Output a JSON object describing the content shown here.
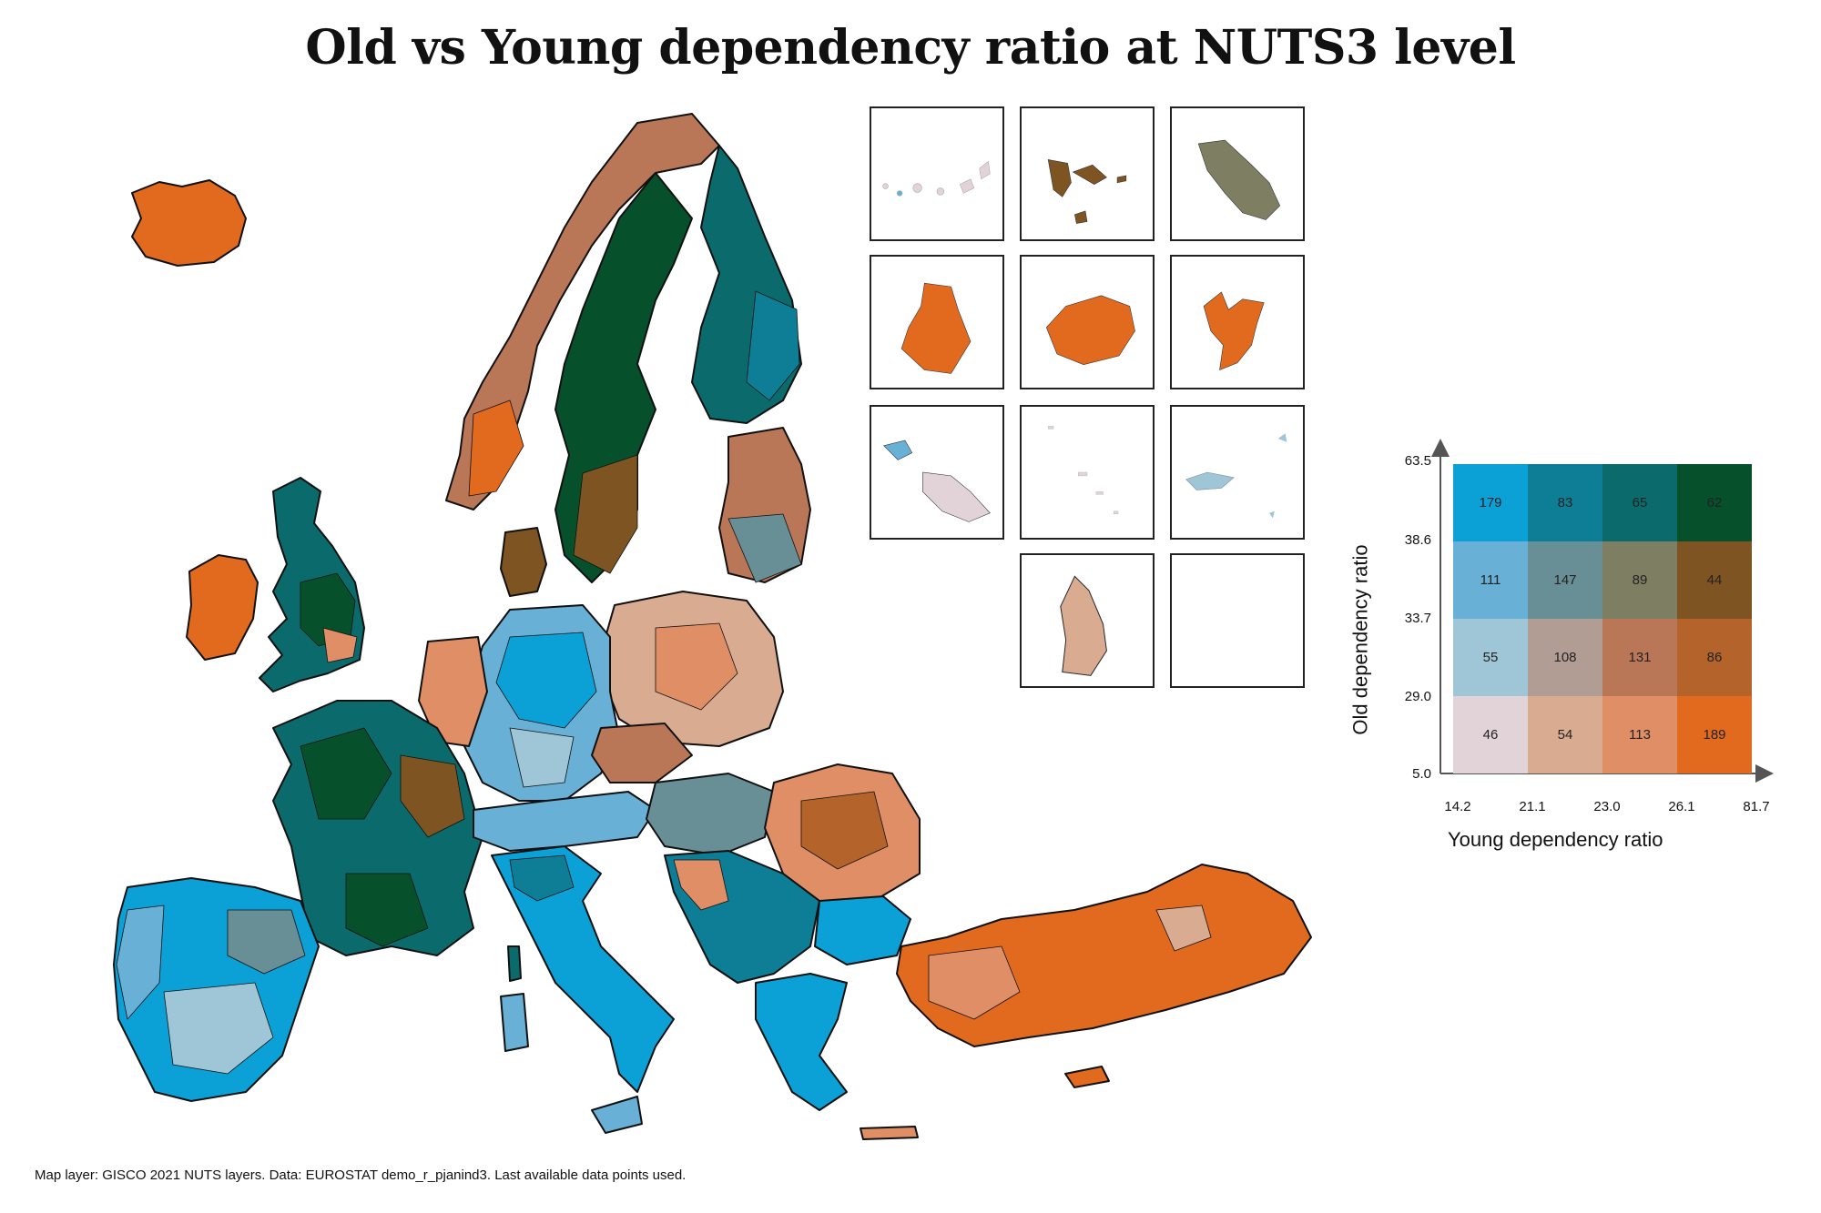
{
  "title": "Old vs Young dependency ratio at NUTS3 level",
  "caption": "Map layer: GISCO 2021 NUTS layers. Data: EUROSTAT demo_r_pjanind3. Last available data points used.",
  "legend": {
    "x_title": "Young dependency ratio",
    "y_title": "Old dependency ratio",
    "x_ticks": [
      "14.2",
      "21.1",
      "23.0",
      "26.1",
      "81.7"
    ],
    "y_ticks": [
      "63.5",
      "38.6",
      "33.7",
      "29.0",
      "5.0"
    ],
    "rows": [
      {
        "colors": [
          "#0ba0d6",
          "#0e7e96",
          "#0b6b6c",
          "#06512c"
        ],
        "counts": [
          "179",
          "83",
          "65",
          "62"
        ]
      },
      {
        "colors": [
          "#69b0d6",
          "#688e96",
          "#7e7e62",
          "#7e5522"
        ],
        "counts": [
          "111",
          "147",
          "89",
          "44"
        ]
      },
      {
        "colors": [
          "#9fc6d6",
          "#b29d94",
          "#ba7758",
          "#b4642a"
        ],
        "counts": [
          "55",
          "108",
          "131",
          "86"
        ]
      },
      {
        "colors": [
          "#e1d3d8",
          "#d9ac92",
          "#e08e65",
          "#e26a1e"
        ],
        "counts": [
          "46",
          "54",
          "113",
          "189"
        ]
      }
    ]
  }
}
